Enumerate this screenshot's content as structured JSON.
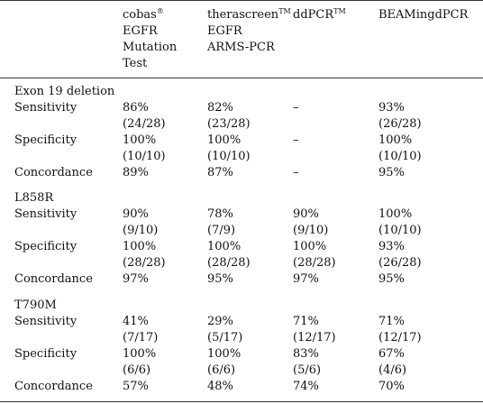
{
  "header": {
    "cobas": {
      "line1": "cobas",
      "sup": "®",
      "line2": "EGFR",
      "line3": "Mutation",
      "line4": "Test"
    },
    "therascreen": {
      "line1": "therascreen",
      "sup": "TM",
      "line2": "EGFR",
      "line3": "ARMS-PCR"
    },
    "ddpcr": {
      "line1": "ddPCR",
      "sup": "TM"
    },
    "beaming": {
      "line1": "BEAMingdPCR"
    }
  },
  "groups": [
    {
      "title": "Exon 19 deletion",
      "rows": [
        {
          "label": "Sensitivity",
          "cobas": [
            "86%",
            "(24/28)"
          ],
          "therascreen": [
            "82%",
            "(23/28)"
          ],
          "ddpcr": [
            "–"
          ],
          "beaming": [
            "93%",
            "(26/28)"
          ]
        },
        {
          "label": "Specificity",
          "cobas": [
            "100%",
            "(10/10)"
          ],
          "therascreen": [
            "100%",
            "(10/10)"
          ],
          "ddpcr": [
            "–"
          ],
          "beaming": [
            "100%",
            "(10/10)"
          ]
        },
        {
          "label": "Concordance",
          "cobas": [
            "89%"
          ],
          "therascreen": [
            "87%"
          ],
          "ddpcr": [
            "–"
          ],
          "beaming": [
            "95%"
          ]
        }
      ]
    },
    {
      "title": "L858R",
      "rows": [
        {
          "label": "Sensitivity",
          "cobas": [
            "90%",
            "(9/10)"
          ],
          "therascreen": [
            "78%",
            "(7/9)"
          ],
          "ddpcr": [
            "90%",
            "(9/10)"
          ],
          "beaming": [
            "100%",
            "(10/10)"
          ]
        },
        {
          "label": "Specificity",
          "cobas": [
            "100%",
            "(28/28)"
          ],
          "therascreen": [
            "100%",
            "(28/28)"
          ],
          "ddpcr": [
            "100%",
            "(28/28)"
          ],
          "beaming": [
            "93%",
            "(26/28)"
          ]
        },
        {
          "label": "Concordance",
          "cobas": [
            "97%"
          ],
          "therascreen": [
            "95%"
          ],
          "ddpcr": [
            "97%"
          ],
          "beaming": [
            "95%"
          ]
        }
      ]
    },
    {
      "title": "T790M",
      "rows": [
        {
          "label": "Sensitivity",
          "cobas": [
            "41%",
            "(7/17)"
          ],
          "therascreen": [
            "29%",
            "(5/17)"
          ],
          "ddpcr": [
            "71%",
            "(12/17)"
          ],
          "beaming": [
            "71%",
            "(12/17)"
          ]
        },
        {
          "label": "Specificity",
          "cobas": [
            "100%",
            "(6/6)"
          ],
          "therascreen": [
            "100%",
            "(6/6)"
          ],
          "ddpcr": [
            "83%",
            "(5/6)"
          ],
          "beaming": [
            "67%",
            "(4/6)"
          ]
        },
        {
          "label": "Concordance",
          "cobas": [
            "57%"
          ],
          "therascreen": [
            "48%"
          ],
          "ddpcr": [
            "74%"
          ],
          "beaming": [
            "70%"
          ]
        }
      ]
    }
  ]
}
